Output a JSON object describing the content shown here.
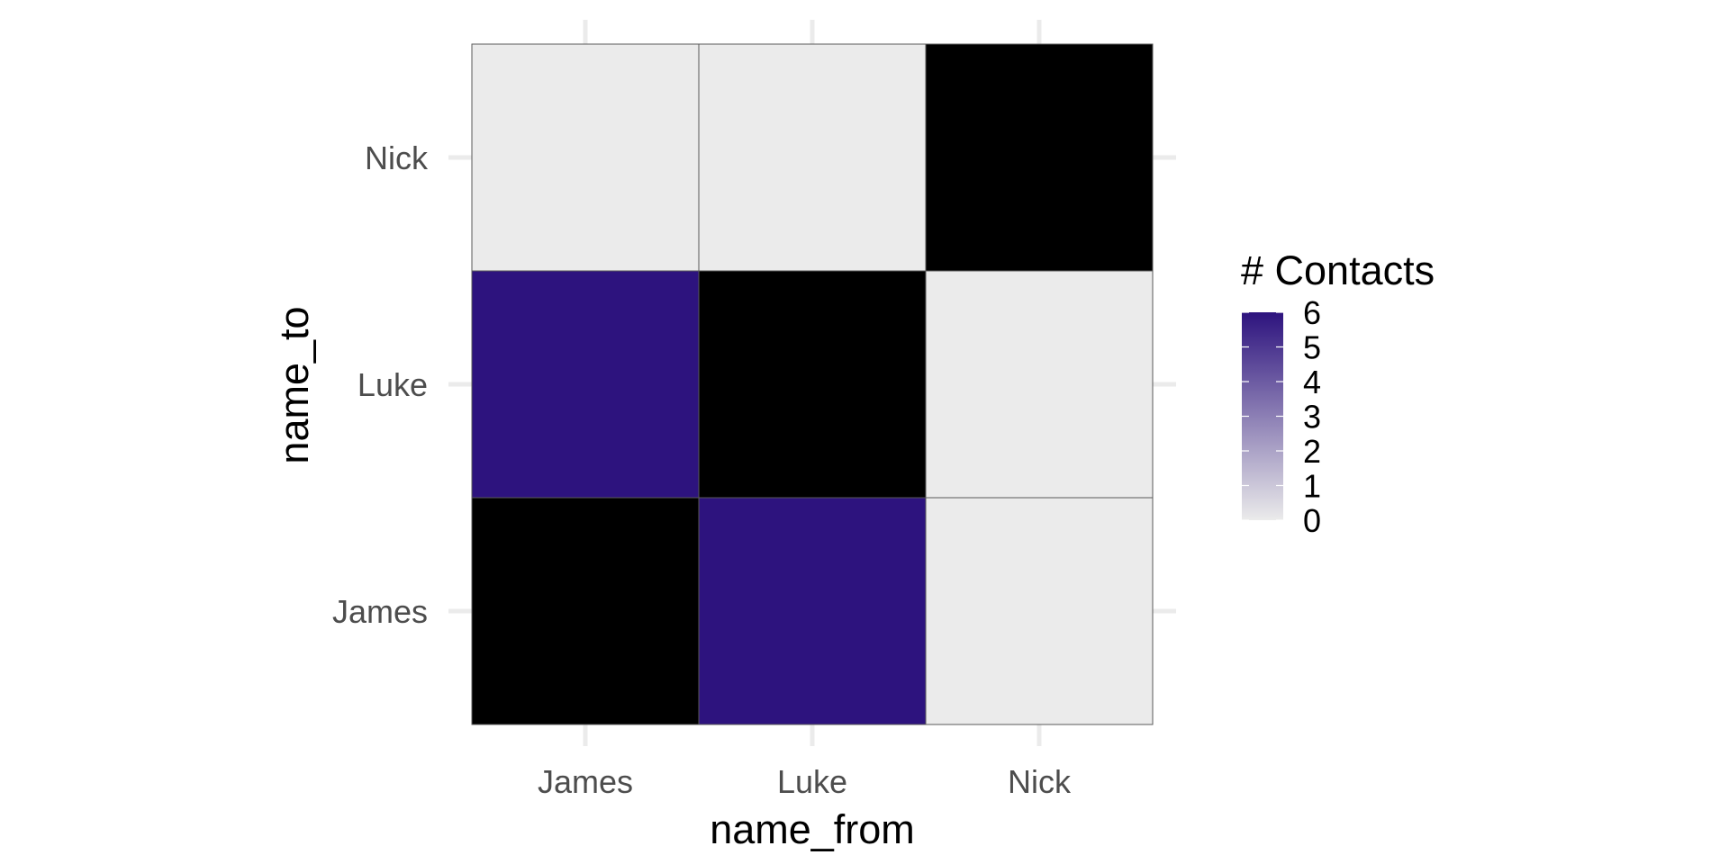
{
  "chart_data": {
    "type": "heatmap",
    "x_categories": [
      "James",
      "Luke",
      "Nick"
    ],
    "y_categories": [
      "James",
      "Luke",
      "Nick"
    ],
    "cells": [
      {
        "x": "James",
        "y": "James",
        "value": null
      },
      {
        "x": "Luke",
        "y": "James",
        "value": 6
      },
      {
        "x": "Nick",
        "y": "James",
        "value": 0
      },
      {
        "x": "James",
        "y": "Luke",
        "value": 6
      },
      {
        "x": "Luke",
        "y": "Luke",
        "value": null
      },
      {
        "x": "Nick",
        "y": "Luke",
        "value": 0
      },
      {
        "x": "James",
        "y": "Nick",
        "value": 0
      },
      {
        "x": "Luke",
        "y": "Nick",
        "value": 0
      },
      {
        "x": "Nick",
        "y": "Nick",
        "value": null
      }
    ],
    "xlabel": "name_from",
    "ylabel": "name_to",
    "legend": {
      "title": "# Contacts",
      "ticks": [
        0,
        1,
        2,
        3,
        4,
        5,
        6
      ],
      "range": [
        0,
        6
      ],
      "position": "right"
    },
    "colors": {
      "low": "#ebebeb",
      "high": "#2d137e",
      "na": "#000000",
      "gridline": "#ebebeb",
      "cell_border": "#5a5a5a"
    },
    "grid": true
  }
}
